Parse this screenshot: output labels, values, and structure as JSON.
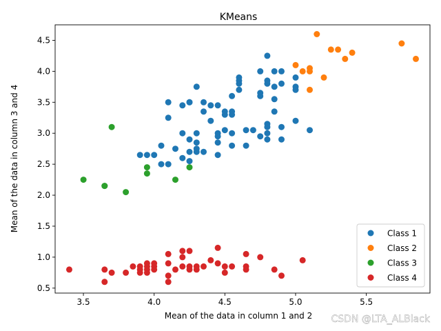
{
  "chart_data": {
    "type": "scatter",
    "title": "KMeans",
    "xlabel": "Mean of the data in column 1 and 2",
    "ylabel": "Mean of the data in column 3 and 4",
    "xlim": [
      3.3,
      5.95
    ],
    "ylim": [
      0.42,
      4.75
    ],
    "xticks": [
      3.5,
      4.0,
      4.5,
      5.0,
      5.5
    ],
    "yticks": [
      0.5,
      1.0,
      1.5,
      2.0,
      2.5,
      3.0,
      3.5,
      4.0,
      4.5
    ],
    "grid": false,
    "legend": "bottom-right",
    "series": [
      {
        "name": "Class 1",
        "color": "#1f77b4",
        "points": [
          [
            3.9,
            2.65
          ],
          [
            3.95,
            2.65
          ],
          [
            4.0,
            2.65
          ],
          [
            4.05,
            2.8
          ],
          [
            4.05,
            2.5
          ],
          [
            4.1,
            2.5
          ],
          [
            4.1,
            3.25
          ],
          [
            4.1,
            3.5
          ],
          [
            4.15,
            2.75
          ],
          [
            4.2,
            3.0
          ],
          [
            4.2,
            2.6
          ],
          [
            4.2,
            3.45
          ],
          [
            4.25,
            3.5
          ],
          [
            4.25,
            3.5
          ],
          [
            4.25,
            2.9
          ],
          [
            4.25,
            2.7
          ],
          [
            4.25,
            2.55
          ],
          [
            4.3,
            3.75
          ],
          [
            4.3,
            3.0
          ],
          [
            4.3,
            2.85
          ],
          [
            4.3,
            2.75
          ],
          [
            4.3,
            2.7
          ],
          [
            4.35,
            3.5
          ],
          [
            4.35,
            3.35
          ],
          [
            4.35,
            2.7
          ],
          [
            4.4,
            3.45
          ],
          [
            4.4,
            3.2
          ],
          [
            4.45,
            3.45
          ],
          [
            4.45,
            3.0
          ],
          [
            4.45,
            2.95
          ],
          [
            4.45,
            2.85
          ],
          [
            4.45,
            2.65
          ],
          [
            4.5,
            3.35
          ],
          [
            4.5,
            3.3
          ],
          [
            4.5,
            3.05
          ],
          [
            4.55,
            3.6
          ],
          [
            4.55,
            3.35
          ],
          [
            4.55,
            3.3
          ],
          [
            4.55,
            3.0
          ],
          [
            4.55,
            2.8
          ],
          [
            4.6,
            3.9
          ],
          [
            4.6,
            3.85
          ],
          [
            4.6,
            3.8
          ],
          [
            4.6,
            3.7
          ],
          [
            4.65,
            3.05
          ],
          [
            4.65,
            2.8
          ],
          [
            4.7,
            3.05
          ],
          [
            4.75,
            4.0
          ],
          [
            4.75,
            3.65
          ],
          [
            4.75,
            3.6
          ],
          [
            4.75,
            2.95
          ],
          [
            4.8,
            4.25
          ],
          [
            4.8,
            3.85
          ],
          [
            4.8,
            3.8
          ],
          [
            4.8,
            3.15
          ],
          [
            4.8,
            3.1
          ],
          [
            4.8,
            3.0
          ],
          [
            4.8,
            2.9
          ],
          [
            4.85,
            4.0
          ],
          [
            4.85,
            3.75
          ],
          [
            4.85,
            3.55
          ],
          [
            4.85,
            3.35
          ],
          [
            4.9,
            4.0
          ],
          [
            4.9,
            3.8
          ],
          [
            4.9,
            3.1
          ],
          [
            4.9,
            2.9
          ],
          [
            5.0,
            3.9
          ],
          [
            5.0,
            3.75
          ],
          [
            5.0,
            3.7
          ],
          [
            5.0,
            3.2
          ],
          [
            5.1,
            3.05
          ]
        ]
      },
      {
        "name": "Class 2",
        "color": "#ff7f0e",
        "points": [
          [
            5.0,
            4.1
          ],
          [
            5.05,
            4.0
          ],
          [
            5.1,
            4.05
          ],
          [
            5.1,
            4.0
          ],
          [
            5.1,
            3.7
          ],
          [
            5.15,
            4.6
          ],
          [
            5.2,
            3.9
          ],
          [
            5.25,
            4.35
          ],
          [
            5.3,
            4.35
          ],
          [
            5.35,
            4.2
          ],
          [
            5.4,
            4.3
          ],
          [
            5.75,
            4.45
          ],
          [
            5.85,
            4.2
          ]
        ]
      },
      {
        "name": "Class 3",
        "color": "#2ca02c",
        "points": [
          [
            3.5,
            2.25
          ],
          [
            3.65,
            2.15
          ],
          [
            3.65,
            2.15
          ],
          [
            3.7,
            3.1
          ],
          [
            3.8,
            2.05
          ],
          [
            3.95,
            2.45
          ],
          [
            3.95,
            2.35
          ],
          [
            4.15,
            2.25
          ],
          [
            4.25,
            2.45
          ]
        ]
      },
      {
        "name": "Class 4",
        "color": "#d62728",
        "points": [
          [
            3.4,
            0.8
          ],
          [
            3.65,
            0.8
          ],
          [
            3.65,
            0.6
          ],
          [
            3.7,
            0.75
          ],
          [
            3.8,
            0.75
          ],
          [
            3.85,
            0.85
          ],
          [
            3.9,
            0.85
          ],
          [
            3.9,
            0.8
          ],
          [
            3.9,
            0.75
          ],
          [
            3.95,
            0.9
          ],
          [
            3.95,
            0.85
          ],
          [
            3.95,
            0.8
          ],
          [
            3.95,
            0.75
          ],
          [
            4.0,
            0.9
          ],
          [
            4.0,
            0.85
          ],
          [
            4.0,
            0.8
          ],
          [
            4.1,
            1.05
          ],
          [
            4.1,
            0.9
          ],
          [
            4.1,
            0.7
          ],
          [
            4.1,
            0.6
          ],
          [
            4.15,
            0.8
          ],
          [
            4.2,
            1.1
          ],
          [
            4.2,
            1.0
          ],
          [
            4.2,
            0.85
          ],
          [
            4.25,
            1.1
          ],
          [
            4.25,
            0.85
          ],
          [
            4.25,
            0.8
          ],
          [
            4.3,
            0.85
          ],
          [
            4.3,
            0.8
          ],
          [
            4.35,
            0.85
          ],
          [
            4.4,
            0.95
          ],
          [
            4.45,
            1.15
          ],
          [
            4.45,
            0.9
          ],
          [
            4.5,
            0.85
          ],
          [
            4.5,
            0.75
          ],
          [
            4.55,
            0.85
          ],
          [
            4.65,
            1.05
          ],
          [
            4.65,
            0.85
          ],
          [
            4.65,
            0.8
          ],
          [
            4.75,
            1.0
          ],
          [
            4.85,
            0.8
          ],
          [
            4.9,
            0.7
          ],
          [
            5.05,
            0.95
          ]
        ]
      }
    ]
  },
  "watermark": "CSDN @LTA_ALBlack"
}
